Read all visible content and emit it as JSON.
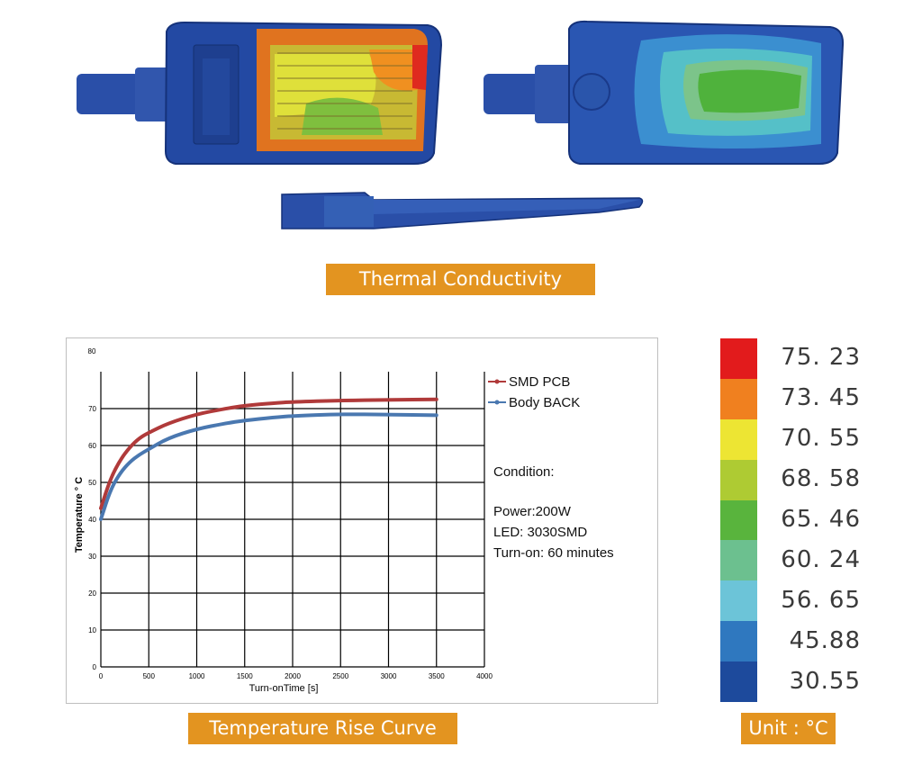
{
  "thermal_banner": "Thermal Conductivity",
  "curve_banner": "Temperature Rise Curve",
  "unit_banner": "Unit : °C",
  "condition": {
    "title": "Condition:",
    "power": "Power:200W",
    "led": "LED: 3030SMD",
    "turn_on": "Turn-on: 60 minutes"
  },
  "colorbar": {
    "colors": [
      "#e21b1c",
      "#f0801f",
      "#ede533",
      "#aecb33",
      "#59b43d",
      "#6cc08f",
      "#6cc4d8",
      "#2f78bf",
      "#1d4a9c"
    ],
    "labels": [
      "75. 23",
      "73. 45",
      "70. 55",
      "68. 58",
      "65. 46",
      "60. 24",
      "56. 65",
      "45.88",
      "30.55"
    ]
  },
  "chart_data": {
    "type": "line",
    "title": "",
    "xlabel": "Turn-onTime [s]",
    "ylabel": "Temperature ° C",
    "xlim": [
      0,
      4000
    ],
    "ylim": [
      0,
      80
    ],
    "xticks": [
      0,
      500,
      1000,
      1500,
      2000,
      2500,
      3000,
      3500,
      4000
    ],
    "yticks": [
      0,
      10,
      20,
      30,
      40,
      50,
      60,
      70,
      80
    ],
    "grid": true,
    "legend_position": "top-right",
    "series": [
      {
        "name": "SMD PCB",
        "color": "#b03a3a",
        "x": [
          0,
          100,
          200,
          300,
          400,
          500,
          700,
          1000,
          1300,
          1500,
          1800,
          2000,
          2500,
          3000,
          3500
        ],
        "y": [
          43,
          51,
          56,
          59.5,
          62,
          63.5,
          66,
          68.5,
          70,
          70.8,
          71.5,
          71.8,
          72.2,
          72.4,
          72.5
        ]
      },
      {
        "name": "Body BACK",
        "color": "#4a78b0",
        "x": [
          0,
          100,
          200,
          300,
          400,
          500,
          700,
          1000,
          1300,
          1500,
          1800,
          2000,
          2500,
          3000,
          3500
        ],
        "y": [
          40,
          48,
          52.5,
          55.5,
          57.5,
          59,
          62,
          64.5,
          66,
          66.8,
          67.6,
          68,
          68.5,
          68.4,
          68.2
        ]
      }
    ]
  }
}
